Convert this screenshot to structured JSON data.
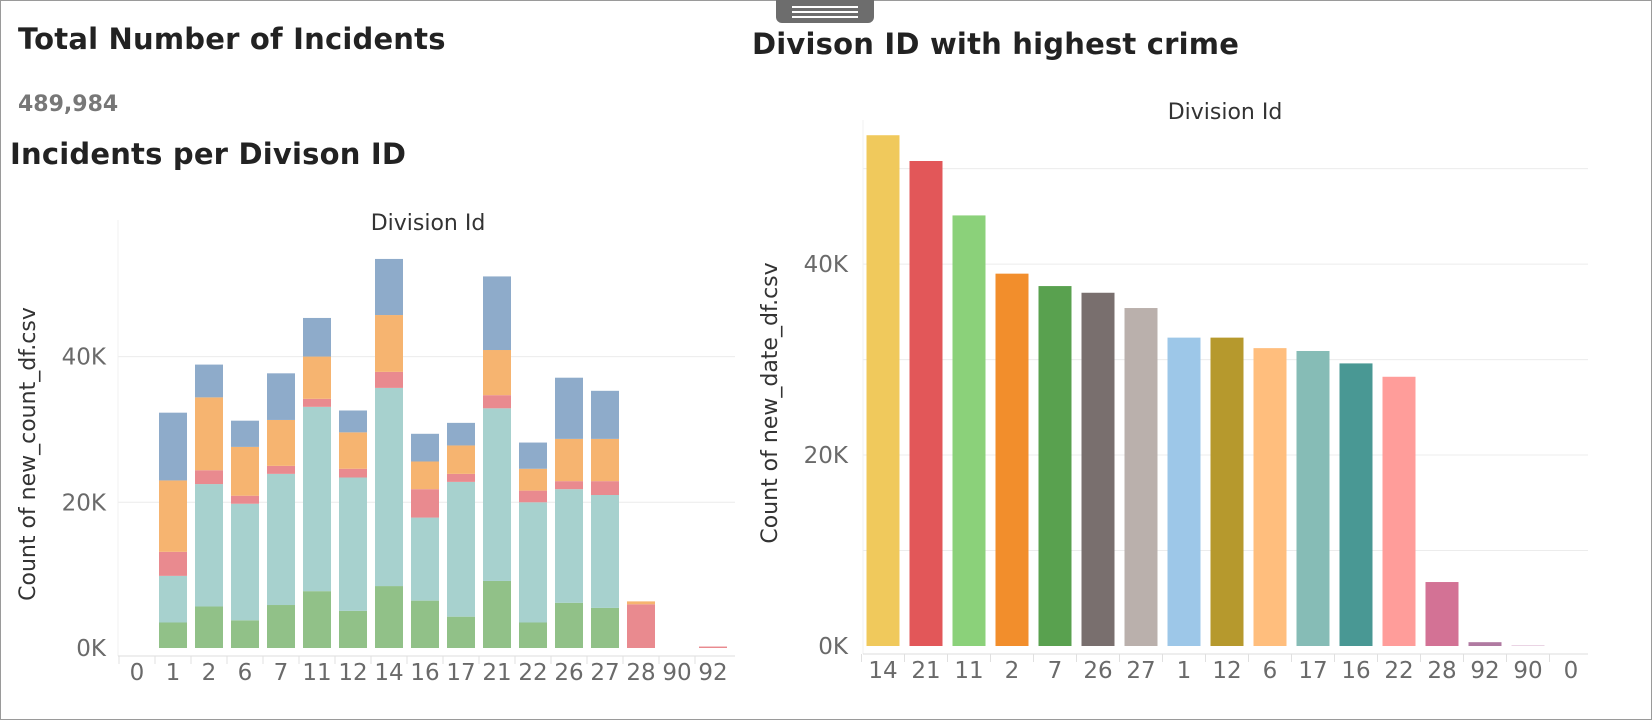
{
  "kpi": {
    "title": "Total Number of Incidents",
    "value": "489,984"
  },
  "chart1_title": "Incidents per Divison ID",
  "chart2_title": "Divison ID with highest crime",
  "chart_data": [
    {
      "type": "bar",
      "stacked": true,
      "title": "Incidents per Divison ID",
      "column_header": "Division Id",
      "ylabel": "Count of new_count_df.csv",
      "xlabel": "",
      "ylim": [
        0,
        56000
      ],
      "yticks": [
        0,
        20000,
        40000
      ],
      "ytick_labels": [
        "0K",
        "20K",
        "40K"
      ],
      "categories": [
        "0",
        "1",
        "2",
        "6",
        "7",
        "11",
        "12",
        "14",
        "16",
        "17",
        "21",
        "22",
        "26",
        "27",
        "28",
        "90",
        "92"
      ],
      "series": [
        {
          "name": "series-green",
          "color": "#8dbf84",
          "values": [
            0,
            3500,
            5700,
            3800,
            5900,
            7800,
            5100,
            8500,
            6500,
            4300,
            9200,
            3500,
            6200,
            5500,
            0,
            0,
            0
          ]
        },
        {
          "name": "series-teal",
          "color": "#a4d0cc",
          "values": [
            0,
            6400,
            16800,
            16000,
            18000,
            25300,
            18300,
            27200,
            11400,
            18500,
            23700,
            16500,
            15600,
            15500,
            0,
            0,
            0
          ]
        },
        {
          "name": "series-pink",
          "color": "#e8868b",
          "values": [
            0,
            3300,
            1900,
            1100,
            1100,
            1100,
            1200,
            2200,
            3900,
            1100,
            1800,
            1600,
            1100,
            1900,
            6000,
            0,
            200
          ]
        },
        {
          "name": "series-orange",
          "color": "#f6b26b",
          "values": [
            0,
            9800,
            10000,
            6700,
            6300,
            5800,
            5000,
            7800,
            3800,
            3900,
            6200,
            3000,
            5800,
            5800,
            400,
            0,
            0
          ]
        },
        {
          "name": "series-blue",
          "color": "#8aa8c8",
          "values": [
            0,
            9300,
            4500,
            3600,
            6400,
            5300,
            3000,
            7700,
            3800,
            3100,
            10100,
            3600,
            8400,
            6600,
            0,
            0,
            0
          ]
        }
      ]
    },
    {
      "type": "bar",
      "title": "Divison ID with highest crime",
      "column_header": "Division Id",
      "ylabel": "Count of new_date_df.csv",
      "xlabel": "",
      "ylim": [
        0,
        53000
      ],
      "yticks": [
        0,
        20000,
        40000
      ],
      "ytick_labels": [
        "0K",
        "20K",
        "40K"
      ],
      "gridlines": [
        0,
        10000,
        20000,
        30000,
        40000,
        50000
      ],
      "categories": [
        "14",
        "21",
        "11",
        "2",
        "7",
        "26",
        "27",
        "1",
        "12",
        "6",
        "17",
        "16",
        "22",
        "28",
        "92",
        "90",
        "0"
      ],
      "values": [
        53500,
        50800,
        45100,
        39000,
        37700,
        37000,
        35400,
        32300,
        32300,
        31200,
        30900,
        29600,
        28200,
        6700,
        400,
        50,
        0
      ],
      "colors": [
        "#f0c95c",
        "#e25759",
        "#8bd17a",
        "#f28e2c",
        "#59a14f",
        "#796f6e",
        "#bab0ac",
        "#9dc7e8",
        "#b6992d",
        "#ffbe7d",
        "#86bcb6",
        "#499894",
        "#ff9d9a",
        "#d37295",
        "#b07aa1",
        "#d4a6c8",
        "#cccccc"
      ]
    }
  ]
}
